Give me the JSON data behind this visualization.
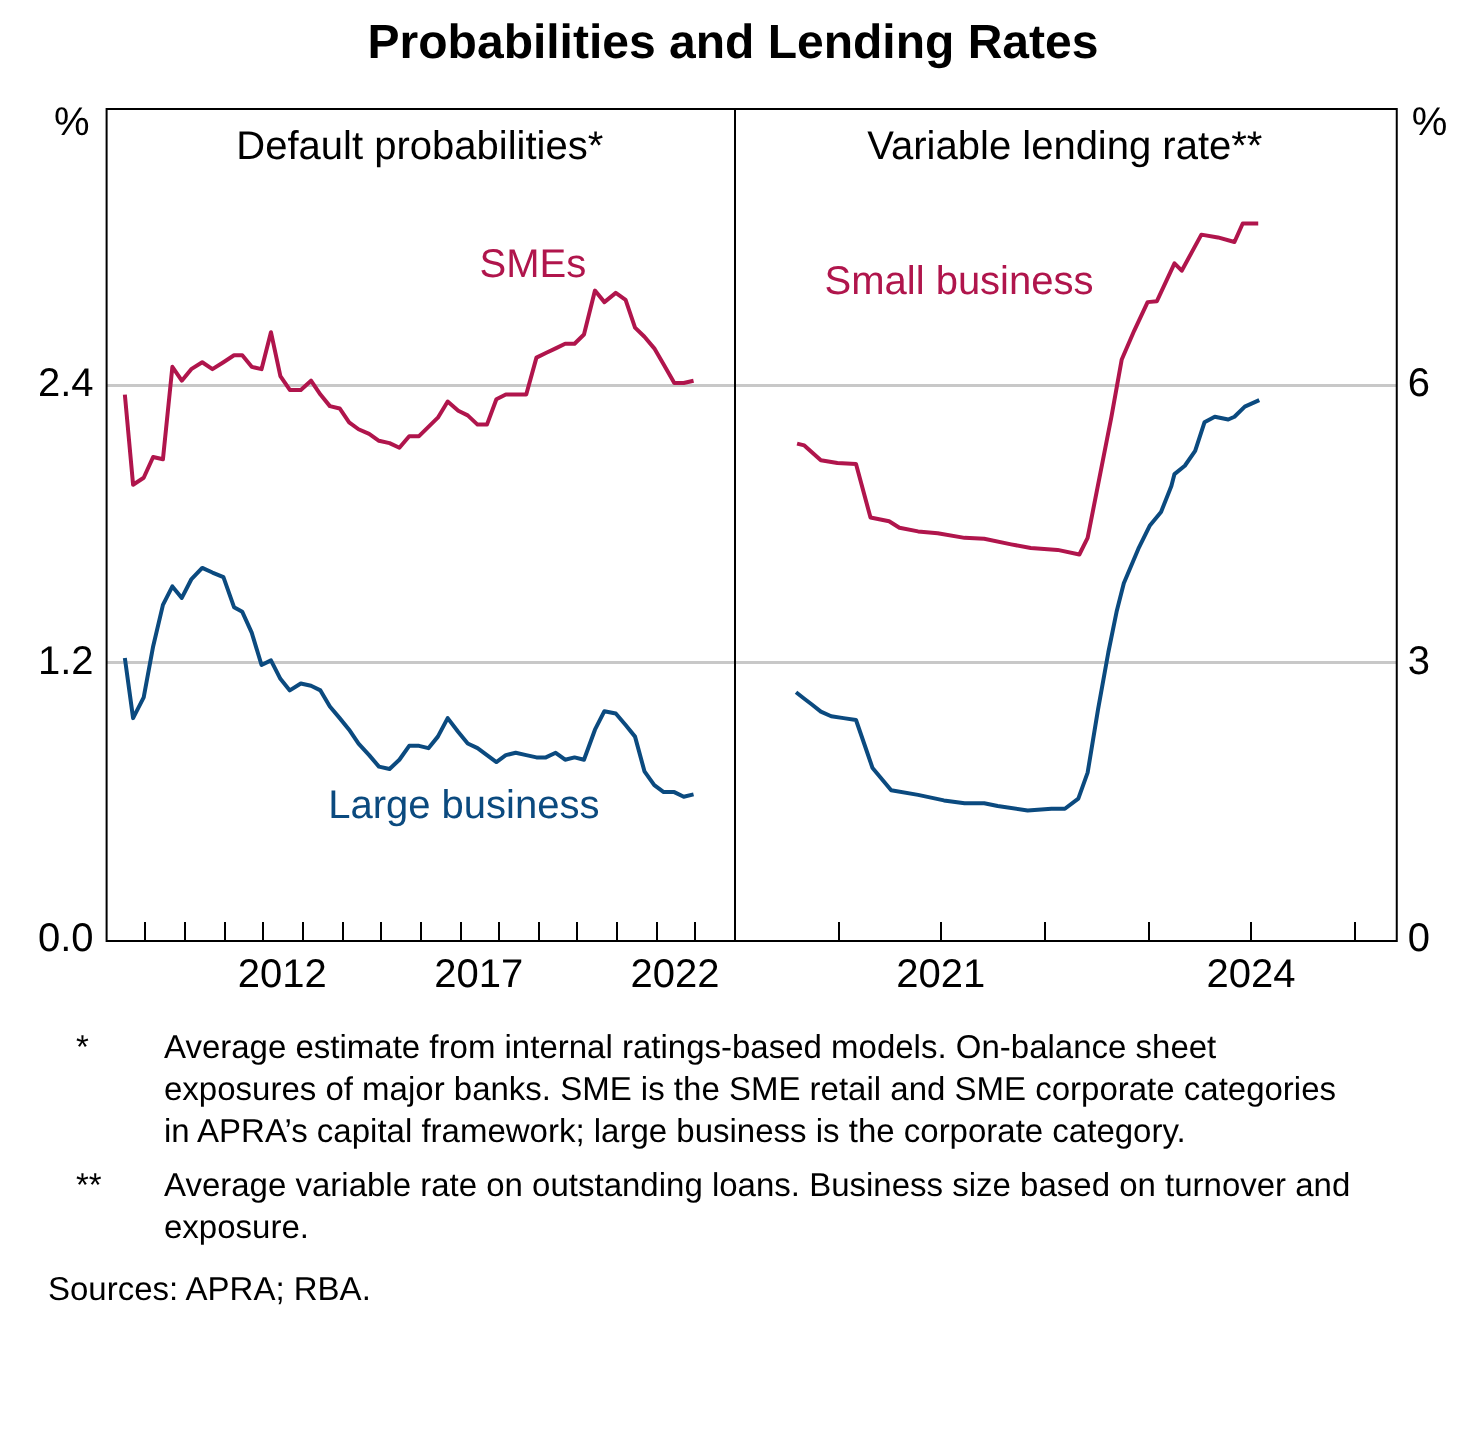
{
  "chart_data": [
    {
      "type": "line",
      "title": "Probabilities and Lending Rates",
      "subtitle": "Default probabilities*",
      "ylabel": "%",
      "xlim": [
        2008,
        2024
      ],
      "xticks": [
        {
          "value": 2009,
          "label": null
        },
        {
          "value": 2010,
          "label": null
        },
        {
          "value": 2011,
          "label": null
        },
        {
          "value": 2012,
          "label": null
        },
        {
          "value": 2012.5,
          "label": "2012"
        },
        {
          "value": 2013,
          "label": null
        },
        {
          "value": 2014,
          "label": null
        },
        {
          "value": 2015,
          "label": null
        },
        {
          "value": 2016,
          "label": null
        },
        {
          "value": 2017,
          "label": null
        },
        {
          "value": 2017.5,
          "label": "2017"
        },
        {
          "value": 2018,
          "label": null
        },
        {
          "value": 2019,
          "label": null
        },
        {
          "value": 2020,
          "label": null
        },
        {
          "value": 2021,
          "label": null
        },
        {
          "value": 2022,
          "label": null
        },
        {
          "value": 2022.5,
          "label": "2022"
        },
        {
          "value": 2023,
          "label": null
        }
      ],
      "ylim": [
        0,
        3.6
      ],
      "yticks": [
        {
          "value": 0,
          "label": "0.0"
        },
        1.2,
        2.4
      ],
      "grid": "y",
      "legend": false,
      "marker": "none",
      "line_style": "solid",
      "series": [
        {
          "name": "SMEs",
          "color": "#b0154c",
          "x": [
            2008.49,
            2008.7,
            2008.97,
            2009.21,
            2009.46,
            2009.7,
            2009.94,
            2010.18,
            2010.46,
            2010.72,
            2011.0,
            2011.27,
            2011.48,
            2011.72,
            2011.97,
            2012.21,
            2012.45,
            2012.69,
            2012.97,
            2013.23,
            2013.47,
            2013.71,
            2013.96,
            2014.2,
            2014.44,
            2014.71,
            2014.96,
            2015.23,
            2015.48,
            2015.73,
            2015.98,
            2016.22,
            2016.46,
            2016.71,
            2016.98,
            2017.22,
            2017.47,
            2017.71,
            2017.95,
            2018.19,
            2018.44,
            2018.71,
            2018.97,
            2019.21,
            2019.46,
            2019.7,
            2019.94,
            2020.18,
            2020.46,
            2020.7,
            2020.99,
            2021.24,
            2021.48,
            2021.72,
            2021.97,
            2022.21,
            2022.48,
            2022.72,
            2022.97
          ],
          "values": [
            2.36,
            1.97,
            2.0,
            2.09,
            2.08,
            2.48,
            2.42,
            2.47,
            2.5,
            2.47,
            2.5,
            2.53,
            2.53,
            2.48,
            2.47,
            2.63,
            2.44,
            2.38,
            2.38,
            2.42,
            2.36,
            2.31,
            2.3,
            2.24,
            2.21,
            2.19,
            2.16,
            2.15,
            2.13,
            2.18,
            2.18,
            2.22,
            2.26,
            2.33,
            2.29,
            2.27,
            2.23,
            2.23,
            2.34,
            2.36,
            2.36,
            2.36,
            2.52,
            2.54,
            2.56,
            2.58,
            2.58,
            2.62,
            2.81,
            2.76,
            2.8,
            2.77,
            2.65,
            2.61,
            2.56,
            2.49,
            2.41,
            2.41,
            2.42
          ]
        },
        {
          "name": "Large business",
          "color": "#0b4a7f",
          "x": [
            2008.49,
            2008.7,
            2008.97,
            2009.21,
            2009.46,
            2009.7,
            2009.94,
            2010.18,
            2010.46,
            2010.72,
            2011.0,
            2011.27,
            2011.48,
            2011.72,
            2011.97,
            2012.21,
            2012.45,
            2012.69,
            2012.97,
            2013.23,
            2013.47,
            2013.71,
            2013.96,
            2014.2,
            2014.44,
            2014.71,
            2014.96,
            2015.23,
            2015.48,
            2015.73,
            2015.98,
            2016.22,
            2016.46,
            2016.71,
            2016.98,
            2017.22,
            2017.47,
            2017.71,
            2017.95,
            2018.19,
            2018.44,
            2018.71,
            2018.97,
            2019.21,
            2019.46,
            2019.7,
            2019.94,
            2020.18,
            2020.46,
            2020.7,
            2020.99,
            2021.24,
            2021.48,
            2021.72,
            2021.97,
            2022.21,
            2022.48,
            2022.72,
            2022.97
          ],
          "values": [
            1.22,
            0.96,
            1.05,
            1.27,
            1.45,
            1.53,
            1.48,
            1.56,
            1.61,
            1.59,
            1.57,
            1.44,
            1.42,
            1.33,
            1.19,
            1.21,
            1.13,
            1.08,
            1.11,
            1.1,
            1.08,
            1.01,
            0.96,
            0.91,
            0.85,
            0.8,
            0.75,
            0.74,
            0.78,
            0.84,
            0.84,
            0.83,
            0.88,
            0.96,
            0.9,
            0.85,
            0.83,
            0.8,
            0.77,
            0.8,
            0.81,
            0.8,
            0.79,
            0.79,
            0.81,
            0.78,
            0.79,
            0.78,
            0.91,
            0.99,
            0.98,
            0.93,
            0.88,
            0.73,
            0.67,
            0.64,
            0.64,
            0.62,
            0.63
          ]
        }
      ],
      "annotations": [
        "*\tAverage estimate from internal ratings-based models. On-balance sheet exposures of major banks. SME is the SME retail and SME corporate categories in APRA’s capital framework; large business is the corporate category.",
        "**\tAverage variable rate on outstanding loans. Business size based on turnover and exposure.",
        "Sources: APRA; RBA."
      ]
    },
    {
      "type": "line",
      "subtitle": "Variable lending rate**",
      "y2label": "%",
      "xlim": [
        2019,
        2025.4
      ],
      "xticks": [
        {
          "value": 2020,
          "label": null
        },
        {
          "value": 2021,
          "label": "2021"
        },
        {
          "value": 2022,
          "label": null
        },
        {
          "value": 2023,
          "label": null
        },
        {
          "value": 2024,
          "label": "2024"
        },
        {
          "value": 2025,
          "label": null
        }
      ],
      "y2lim": [
        0,
        9
      ],
      "y2ticks": [
        0,
        3,
        6
      ],
      "grid": "y",
      "legend": false,
      "marker": "none",
      "line_style": "solid",
      "series": [
        {
          "name": "Small business",
          "color": "#b0154c",
          "axis": "y2",
          "x": [
            2019.61,
            2019.68,
            2019.84,
            2020.0,
            2020.18,
            2020.32,
            2020.5,
            2020.6,
            2020.78,
            2020.97,
            2021.23,
            2021.42,
            2021.68,
            2021.87,
            2022.13,
            2022.34,
            2022.42,
            2022.65,
            2022.75,
            2022.87,
            2023.0,
            2023.09,
            2023.26,
            2023.33,
            2023.52,
            2023.68,
            2023.84,
            2023.92,
            2024.07
          ],
          "values": [
            5.37,
            5.35,
            5.19,
            5.16,
            5.15,
            4.57,
            4.53,
            4.46,
            4.42,
            4.4,
            4.35,
            4.34,
            4.28,
            4.24,
            4.22,
            4.17,
            4.35,
            5.66,
            6.28,
            6.59,
            6.9,
            6.91,
            7.32,
            7.24,
            7.63,
            7.6,
            7.55,
            7.75,
            7.75
          ]
        },
        {
          "color": "#0b4a7f",
          "axis": "y2",
          "x": [
            2019.6,
            2019.68,
            2019.75,
            2019.84,
            2019.94,
            2020.06,
            2020.18,
            2020.26,
            2020.34,
            2020.52,
            2020.78,
            2021.03,
            2021.23,
            2021.42,
            2021.55,
            2021.84,
            2022.07,
            2022.2,
            2022.33,
            2022.42,
            2022.52,
            2022.62,
            2022.7,
            2022.77,
            2022.91,
            2023.02,
            2023.13,
            2023.23,
            2023.26,
            2023.36,
            2023.46,
            2023.55,
            2023.65,
            2023.78,
            2023.84,
            2023.94,
            2024.08
          ],
          "values": [
            2.68,
            2.61,
            2.55,
            2.47,
            2.42,
            2.4,
            2.38,
            2.12,
            1.86,
            1.62,
            1.57,
            1.51,
            1.48,
            1.48,
            1.45,
            1.4,
            1.42,
            1.42,
            1.53,
            1.81,
            2.49,
            3.11,
            3.55,
            3.86,
            4.23,
            4.48,
            4.63,
            4.91,
            5.04,
            5.13,
            5.29,
            5.6,
            5.66,
            5.63,
            5.66,
            5.77,
            5.84
          ]
        }
      ]
    }
  ]
}
